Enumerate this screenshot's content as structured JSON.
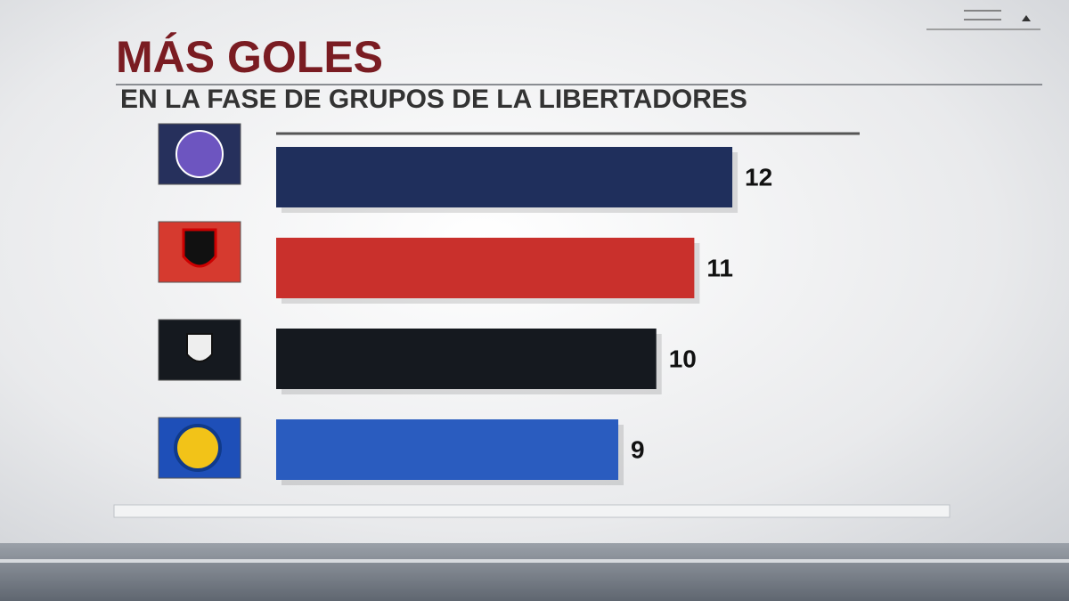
{
  "chart_data": {
    "type": "hbar",
    "title": "MÁS GOLES",
    "subtitle": "EN LA FASE DE GRUPOS DE LA LIBERTADORES",
    "categories": [
      null,
      null,
      null,
      null
    ],
    "values": [
      12,
      11,
      10,
      9
    ],
    "colors": [
      "#1f2f5c",
      "#c9302c",
      "#15191f",
      "#2a5cbf"
    ],
    "xlim": [
      0,
      15.35
    ]
  }
}
